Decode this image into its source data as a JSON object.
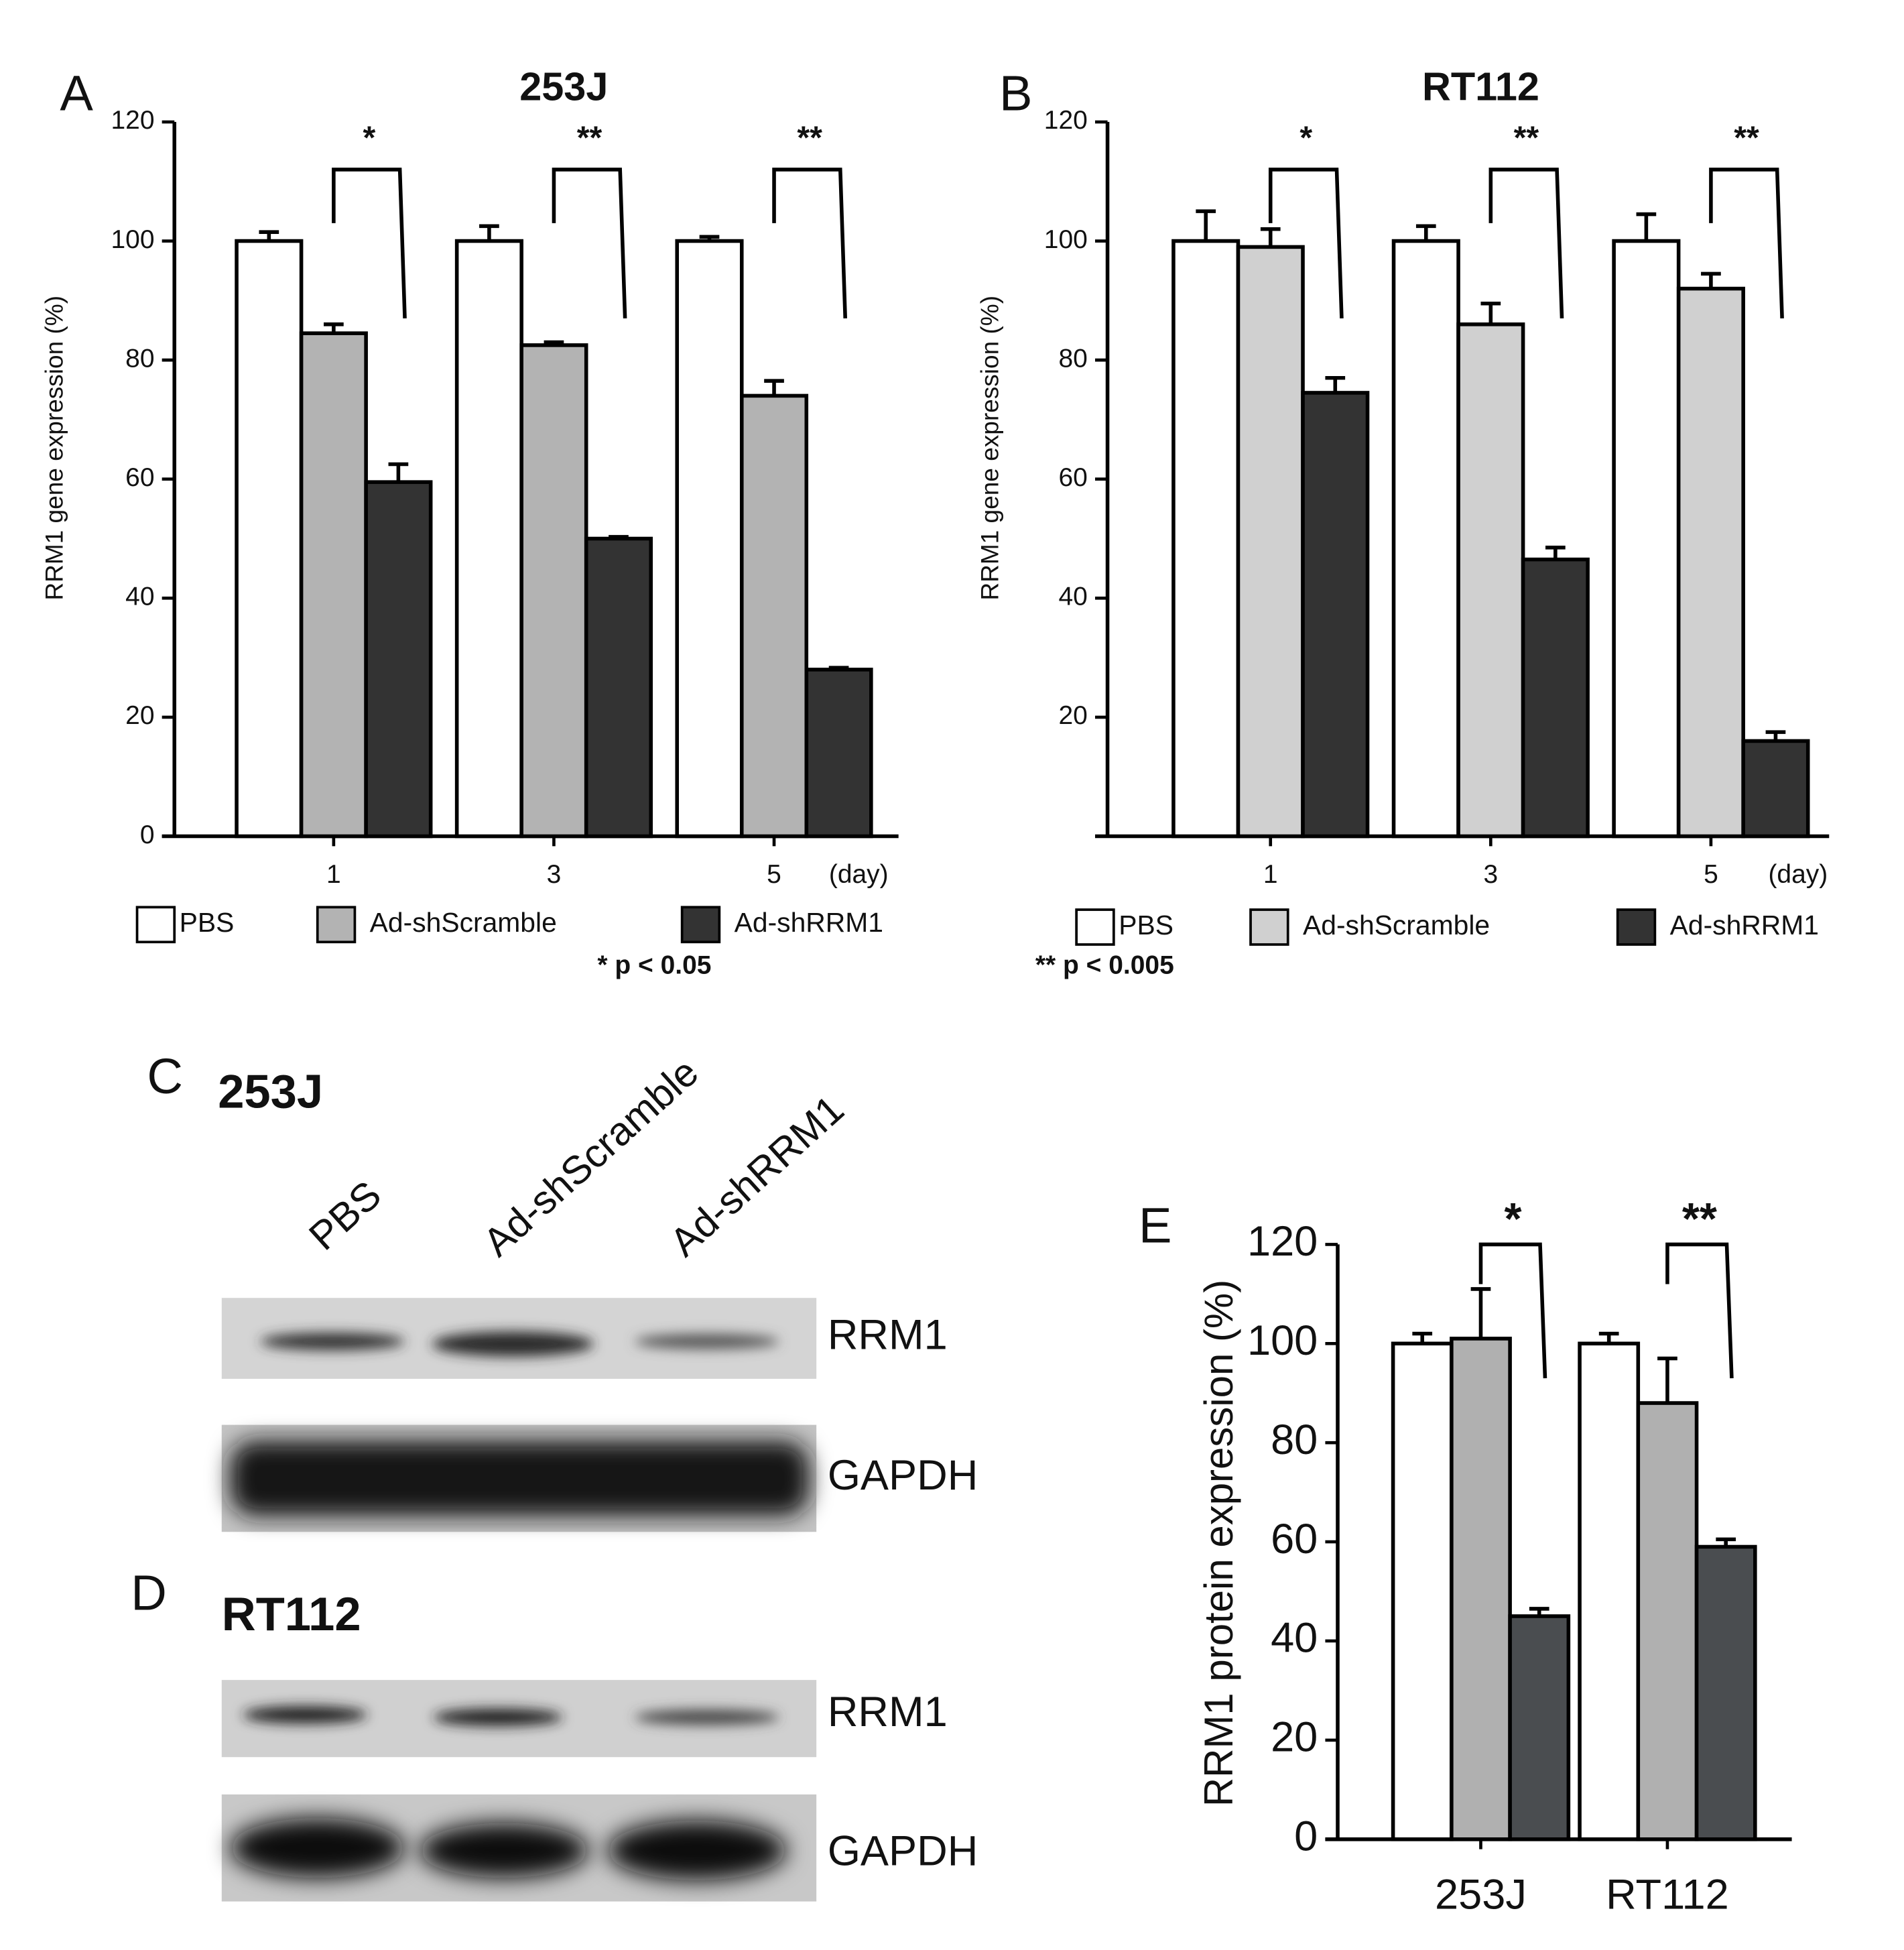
{
  "chart_data": [
    {
      "type": "bar",
      "panel": "A",
      "title": "253J",
      "y_label": "RRM1 gene expression (%)",
      "categories": [
        "1",
        "3",
        "5"
      ],
      "x_unit": "(day)",
      "series": [
        {
          "name": "PBS",
          "color": "#ffffff",
          "values": [
            100,
            100,
            100
          ],
          "errors": [
            1.5,
            2.5,
            0.7
          ]
        },
        {
          "name": "Ad-shScramble",
          "color": "#b3b3b3",
          "values": [
            84.5,
            82.5,
            74
          ],
          "errors": [
            1.5,
            0.5,
            2.5
          ]
        },
        {
          "name": "Ad-shRRM1",
          "color": "#333333",
          "values": [
            59.5,
            50,
            28
          ],
          "errors": [
            3,
            0.3,
            0.3
          ]
        }
      ],
      "ylim": [
        0,
        120
      ],
      "yticks": [
        0,
        20,
        40,
        60,
        80,
        100,
        120
      ],
      "annotations": [
        "*",
        "**",
        "**"
      ],
      "note": "* p < 0.05"
    },
    {
      "type": "bar",
      "panel": "B",
      "title": "RT112",
      "y_label": "RRM1 gene expression (%)",
      "categories": [
        "1",
        "3",
        "5"
      ],
      "x_unit": "(day)",
      "series": [
        {
          "name": "PBS",
          "color": "#ffffff",
          "values": [
            100,
            100,
            100
          ],
          "errors": [
            5,
            2.5,
            4.5
          ]
        },
        {
          "name": "Ad-shScramble",
          "color": "#d0d0d0",
          "values": [
            99,
            86,
            92
          ],
          "errors": [
            3,
            3.5,
            2.5
          ]
        },
        {
          "name": "Ad-shRRM1",
          "color": "#333333",
          "values": [
            74.5,
            46.5,
            16
          ],
          "errors": [
            2.5,
            2,
            1.5
          ]
        }
      ],
      "ylim": [
        0,
        120
      ],
      "yticks": [
        20,
        40,
        60,
        80,
        100,
        120
      ],
      "annotations": [
        "*",
        "**",
        "**"
      ],
      "note": "** p < 0.005"
    },
    {
      "type": "bar",
      "panel": "E",
      "y_label": "RRM1 protein expression (%)",
      "categories": [
        "253J",
        "RT112"
      ],
      "series": [
        {
          "color": "#ffffff",
          "values": [
            100,
            100
          ],
          "errors": [
            2,
            2
          ]
        },
        {
          "color": "#b0b0b0",
          "values": [
            101,
            88
          ],
          "errors": [
            10,
            9
          ]
        },
        {
          "color": "#4a4d50",
          "values": [
            45,
            59
          ],
          "errors": [
            1.5,
            1.5
          ]
        }
      ],
      "ylim": [
        0,
        120
      ],
      "yticks": [
        0,
        20,
        40,
        60,
        80,
        100,
        120
      ],
      "annotations": [
        "*",
        "**"
      ]
    }
  ],
  "blots": {
    "lanes": [
      "PBS",
      "Ad-shScramble",
      "Ad-shRRM1"
    ],
    "panels": [
      {
        "letter": "C",
        "title": "253J",
        "rows": [
          "RRM1",
          "GAPDH"
        ]
      },
      {
        "letter": "D",
        "title": "RT112",
        "rows": [
          "RRM1",
          "GAPDH"
        ]
      }
    ]
  }
}
